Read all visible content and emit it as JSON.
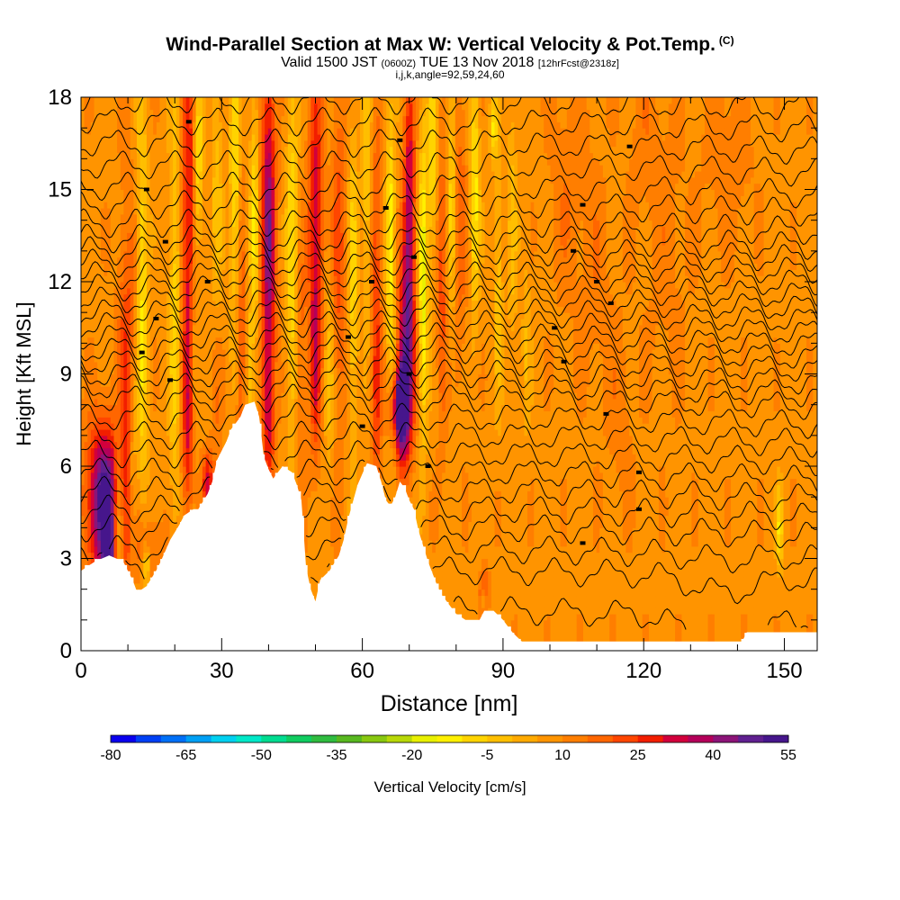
{
  "header": {
    "title": "Wind-Parallel Section at Max W: Vertical Velocity & Pot.Temp.",
    "copyright": "(C)",
    "valid_prefix": "Valid 1500 JST",
    "utc_time": "(0600Z)",
    "valid_date": "TUE 13 Nov 2018",
    "forecast": "[12hrFcst@2318z]",
    "indices": "i,j,k,angle=92,59,24,60"
  },
  "chart_data": {
    "type": "heatmap",
    "xlabel": "Distance [nm]",
    "ylabel": "Height [Kft MSL]",
    "xlim": [
      0,
      157
    ],
    "ylim": [
      0,
      18
    ],
    "xticks": [
      0,
      30,
      60,
      90,
      120,
      150
    ],
    "yticks": [
      0,
      3,
      6,
      9,
      12,
      15,
      18
    ],
    "colorbar": {
      "label": "Vertical Velocity [cm/s]",
      "min": -80,
      "max": 55,
      "step": 5,
      "tick_labels": [
        -80,
        -65,
        -50,
        -35,
        -20,
        -5,
        10,
        25,
        40,
        55
      ],
      "colors": [
        "#0a00ee",
        "#0040f5",
        "#0070f7",
        "#00a0f5",
        "#00d0f0",
        "#00e8c8",
        "#00dc90",
        "#10cc60",
        "#30bc40",
        "#58b820",
        "#88c810",
        "#b8d808",
        "#e8f000",
        "#fff000",
        "#ffd400",
        "#ffbf00",
        "#ffaa00",
        "#ff9400",
        "#ff7e00",
        "#ff6600",
        "#ff4600",
        "#f21e00",
        "#d2003c",
        "#b4005a",
        "#8c1478",
        "#602090",
        "#46168c"
      ]
    },
    "background_w": 8,
    "terrain": [
      [
        0,
        2.6
      ],
      [
        3,
        2.9
      ],
      [
        6,
        3.1
      ],
      [
        9,
        2.9
      ],
      [
        11,
        2.3
      ],
      [
        12,
        1.9
      ],
      [
        14,
        2.1
      ],
      [
        16,
        2.6
      ],
      [
        17,
        2.9
      ],
      [
        19,
        3.6
      ],
      [
        21,
        4.1
      ],
      [
        22,
        4.4
      ],
      [
        24,
        4.6
      ],
      [
        25,
        4.6
      ],
      [
        27,
        5.1
      ],
      [
        28,
        5.5
      ],
      [
        29,
        6.2
      ],
      [
        31,
        6.8
      ],
      [
        32,
        7.2
      ],
      [
        34,
        7.6
      ],
      [
        35,
        8.0
      ],
      [
        37,
        8.1
      ],
      [
        38,
        7.6
      ],
      [
        39,
        6.3
      ],
      [
        40,
        5.9
      ],
      [
        41,
        5.6
      ],
      [
        43,
        6.0
      ],
      [
        45,
        5.8
      ],
      [
        46,
        5.4
      ],
      [
        47,
        4.9
      ],
      [
        47.5,
        4.0
      ],
      [
        48,
        2.7
      ],
      [
        49,
        2.0
      ],
      [
        50,
        1.6
      ],
      [
        51,
        2.3
      ],
      [
        53,
        2.6
      ],
      [
        55,
        3.1
      ],
      [
        56,
        3.6
      ],
      [
        57,
        4.3
      ],
      [
        59,
        5.4
      ],
      [
        61,
        6.1
      ],
      [
        63,
        6.0
      ],
      [
        64,
        5.5
      ],
      [
        65,
        4.9
      ],
      [
        66,
        4.7
      ],
      [
        67,
        5.0
      ],
      [
        68,
        5.5
      ],
      [
        69,
        5.3
      ],
      [
        70,
        4.9
      ],
      [
        71,
        4.6
      ],
      [
        72,
        3.9
      ],
      [
        73,
        3.4
      ],
      [
        74,
        2.9
      ],
      [
        75,
        2.5
      ],
      [
        76,
        2.1
      ],
      [
        77,
        1.8
      ],
      [
        78,
        1.6
      ],
      [
        79,
        1.4
      ],
      [
        80,
        1.2
      ],
      [
        82,
        1.0
      ],
      [
        85,
        1.0
      ],
      [
        86,
        1.3
      ],
      [
        88,
        1.3
      ],
      [
        90,
        1.0
      ],
      [
        92,
        0.6
      ],
      [
        94,
        0.3
      ],
      [
        100,
        0.3
      ],
      [
        120,
        0.3
      ],
      [
        135,
        0.3
      ],
      [
        141,
        0.3
      ],
      [
        142,
        0.6
      ],
      [
        150,
        0.6
      ],
      [
        157,
        0.6
      ]
    ],
    "updrafts": [
      [
        5,
        4.8,
        3.5,
        2.5,
        48
      ],
      [
        6,
        2.8,
        1.4,
        1.1,
        28
      ],
      [
        10,
        8,
        2.0,
        6,
        20
      ],
      [
        23,
        13.5,
        1.5,
        6,
        26
      ],
      [
        23,
        7,
        1.4,
        3,
        18
      ],
      [
        27,
        5.5,
        1.1,
        1.0,
        24
      ],
      [
        29,
        9,
        1.1,
        5,
        14
      ],
      [
        34,
        11,
        1.2,
        6,
        14
      ],
      [
        40,
        13.5,
        1.5,
        6,
        36
      ],
      [
        40,
        7.5,
        1.2,
        2,
        14
      ],
      [
        47,
        9,
        1.2,
        4,
        10
      ],
      [
        50,
        14,
        1.5,
        5,
        26
      ],
      [
        50,
        9,
        1.0,
        3,
        16
      ],
      [
        55,
        13,
        1.5,
        6,
        14
      ],
      [
        63,
        8,
        1.0,
        3,
        10
      ],
      [
        68,
        7.8,
        1.8,
        1.4,
        50
      ],
      [
        69,
        9.5,
        2.0,
        3,
        30
      ],
      [
        70,
        14,
        1.2,
        5,
        30
      ],
      [
        65,
        3.5,
        1.0,
        1.2,
        12
      ],
      [
        63,
        12,
        1.2,
        6,
        14
      ],
      [
        77,
        12,
        1.1,
        5,
        14
      ],
      [
        81,
        14,
        1.2,
        5,
        10
      ],
      [
        86,
        2.0,
        0.9,
        0.7,
        22
      ],
      [
        29,
        3.5,
        3,
        1.2,
        8
      ],
      [
        14,
        3.3,
        4,
        1.2,
        10
      ],
      [
        104,
        15,
        4,
        4,
        6
      ],
      [
        110,
        12,
        3,
        4,
        5
      ],
      [
        115,
        8,
        3,
        3,
        5
      ],
      [
        125,
        13,
        5,
        5,
        4
      ],
      [
        138,
        16,
        5,
        3,
        6
      ],
      [
        120,
        17,
        4,
        3,
        4
      ]
    ],
    "downdrafts": [
      [
        8,
        4,
        1.1,
        3,
        24
      ],
      [
        11,
        6,
        1.0,
        4,
        16
      ],
      [
        13,
        11,
        1.2,
        7,
        20
      ],
      [
        14,
        2.8,
        0.8,
        0.6,
        20
      ],
      [
        20,
        11,
        1.2,
        7,
        16
      ],
      [
        24,
        9,
        0.9,
        4,
        14
      ],
      [
        25,
        16,
        1.0,
        3,
        20
      ],
      [
        26,
        3.7,
        0.8,
        0.5,
        16
      ],
      [
        29,
        13,
        1.1,
        6,
        16
      ],
      [
        33,
        15,
        1.2,
        5,
        22
      ],
      [
        36,
        9,
        0.8,
        2,
        14
      ],
      [
        37,
        14,
        1.0,
        4,
        18
      ],
      [
        45,
        13,
        1.2,
        6,
        18
      ],
      [
        53,
        9,
        1.0,
        3,
        12
      ],
      [
        58,
        12,
        1.0,
        5,
        16
      ],
      [
        61,
        15,
        1.0,
        4,
        14
      ],
      [
        66,
        13,
        1.0,
        5,
        22
      ],
      [
        67,
        7,
        0.8,
        1.2,
        12
      ],
      [
        67,
        9.5,
        0.8,
        1.5,
        12
      ],
      [
        73,
        12,
        1.0,
        5,
        26
      ],
      [
        75,
        16,
        1.0,
        3,
        18
      ],
      [
        79,
        15,
        0.9,
        4,
        14
      ],
      [
        84,
        15,
        1.0,
        4,
        20
      ],
      [
        86,
        1.8,
        0.5,
        0.5,
        22
      ],
      [
        89,
        12,
        0.9,
        4,
        12
      ],
      [
        92,
        14,
        1.0,
        4,
        10
      ],
      [
        95,
        10,
        0.9,
        3,
        8
      ],
      [
        149,
        4,
        0.7,
        1.3,
        18
      ],
      [
        88,
        17,
        0.8,
        1,
        18
      ]
    ],
    "isentropes": {
      "color": "#000000",
      "levels": [
        1.3,
        2.6,
        3.3,
        4.0,
        4.6,
        5.2,
        5.8,
        6.4,
        7.0,
        7.6,
        8.2,
        8.6,
        9.0,
        9.4,
        9.8,
        10.2,
        10.6,
        11.0,
        11.4,
        11.8,
        12.2,
        12.6,
        13.0,
        13.4,
        13.9,
        14.5,
        15.1,
        15.8,
        16.5,
        17.2,
        17.9
      ],
      "valley_center_nm": 137,
      "valley_depth_kft": 1.9
    },
    "contour_labels": [
      [
        23,
        17.2
      ],
      [
        14,
        15.0
      ],
      [
        18,
        13.3
      ],
      [
        27,
        12.0
      ],
      [
        16,
        10.8
      ],
      [
        13,
        9.7
      ],
      [
        19,
        8.8
      ],
      [
        68,
        16.6
      ],
      [
        65,
        14.4
      ],
      [
        71,
        12.8
      ],
      [
        62,
        12.0
      ],
      [
        57,
        10.2
      ],
      [
        70,
        9.0
      ],
      [
        60,
        7.3
      ],
      [
        74,
        6.0
      ],
      [
        117,
        16.4
      ],
      [
        107,
        14.5
      ],
      [
        105,
        13.0
      ],
      [
        110,
        12.0
      ],
      [
        113,
        11.3
      ],
      [
        101,
        10.5
      ],
      [
        103,
        9.4
      ],
      [
        112,
        7.7
      ],
      [
        119,
        5.8
      ],
      [
        119,
        4.6
      ],
      [
        107,
        3.5
      ]
    ]
  }
}
